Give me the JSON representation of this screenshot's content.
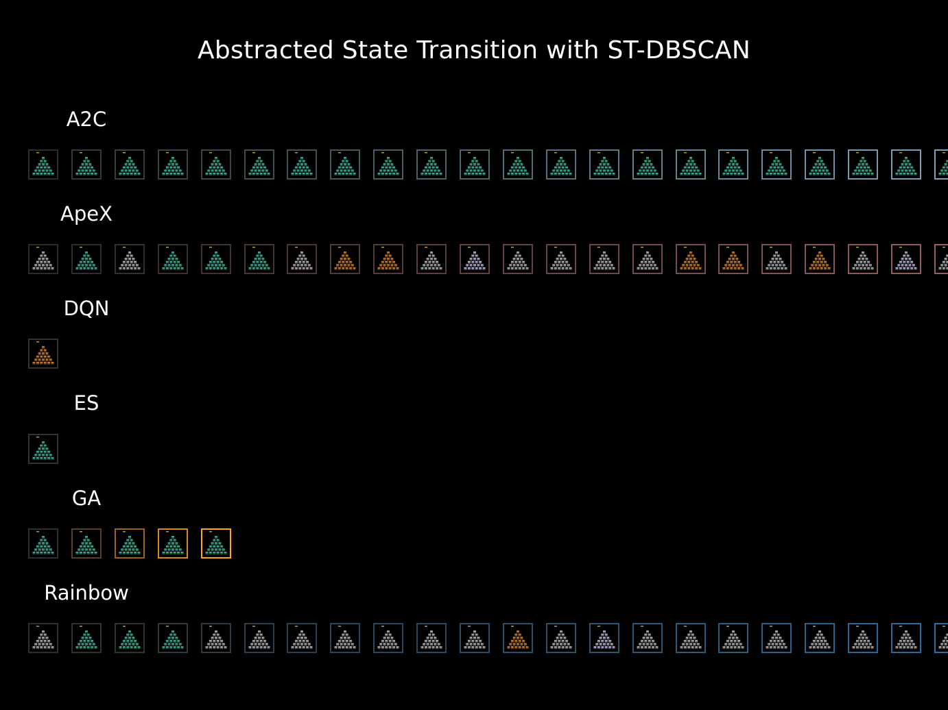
{
  "title": "Abstracted State Transition with ST-DBSCAN",
  "colors": {
    "background": "#000000",
    "text": "#ffffff",
    "teal": "#3aa88e",
    "gray": "#a8a8a8",
    "orange": "#c07828",
    "lilac": "#b0a8c8"
  },
  "rows": [
    {
      "label": "A2C",
      "frames": [
        "teal",
        "teal",
        "teal",
        "teal",
        "teal",
        "teal",
        "teal",
        "teal",
        "teal",
        "teal",
        "teal",
        "teal",
        "teal",
        "teal",
        "teal",
        "teal",
        "teal",
        "teal",
        "teal",
        "teal",
        "teal",
        "teal"
      ],
      "borders": [
        "#2e2e2e",
        "#333a3c",
        "#35403f",
        "#384444",
        "#3b484a",
        "#3e4e52",
        "#415257",
        "#45585e",
        "#485d64",
        "#4c626b",
        "#506871",
        "#546e78",
        "#58737f",
        "#5c7985",
        "#607e8c",
        "#648493",
        "#688999",
        "#6c8fa0",
        "#7094a6",
        "#749aad",
        "#789fb3",
        "#7ca4b9"
      ]
    },
    {
      "label": "ApeX",
      "frames": [
        "gray",
        "teal",
        "gray",
        "teal",
        "teal",
        "teal",
        "gray",
        "orange",
        "orange",
        "gray",
        "lilac",
        "gray",
        "gray",
        "gray",
        "gray",
        "orange",
        "orange",
        "gray",
        "orange",
        "gray",
        "lilac",
        "gray"
      ],
      "borders": [
        "#2e2a2a",
        "#332c2c",
        "#382e2e",
        "#3d3030",
        "#423232",
        "#473434",
        "#4c3737",
        "#513939",
        "#563b3b",
        "#5b3e3e",
        "#604040",
        "#654343",
        "#6a4646",
        "#6f4848",
        "#744b4b",
        "#794e4e",
        "#7e5151",
        "#835454",
        "#885757",
        "#8d5a5a",
        "#925d5d",
        "#976060"
      ]
    },
    {
      "label": "DQN",
      "frames": [
        "orange"
      ],
      "borders": [
        "#333333"
      ]
    },
    {
      "label": "ES",
      "frames": [
        "teal"
      ],
      "borders": [
        "#333333"
      ]
    },
    {
      "label": "GA",
      "frames": [
        "teal",
        "teal",
        "teal",
        "teal",
        "teal"
      ],
      "borders": [
        "#2f2f2f",
        "#5a4026",
        "#a0621e",
        "#d88a1c",
        "#ffa520"
      ]
    },
    {
      "label": "Rainbow",
      "frames": [
        "gray",
        "teal",
        "teal",
        "teal",
        "gray",
        "gray",
        "gray",
        "gray",
        "gray",
        "gray",
        "gray",
        "orange",
        "gray",
        "lilac",
        "gray",
        "gray",
        "gray",
        "gray",
        "gray",
        "gray",
        "gray",
        "gray"
      ],
      "borders": [
        "#2d2f31",
        "#2d3236",
        "#2d353b",
        "#2d3840",
        "#2c3b46",
        "#2c3e4b",
        "#2c4150",
        "#2c4456",
        "#2b475b",
        "#2b4a60",
        "#2b4d66",
        "#2b506b",
        "#2a5370",
        "#2a5676",
        "#2a597b",
        "#2a5c80",
        "#295f86",
        "#29628b",
        "#296590",
        "#296896",
        "#286b9b",
        "#286ea0"
      ]
    }
  ]
}
